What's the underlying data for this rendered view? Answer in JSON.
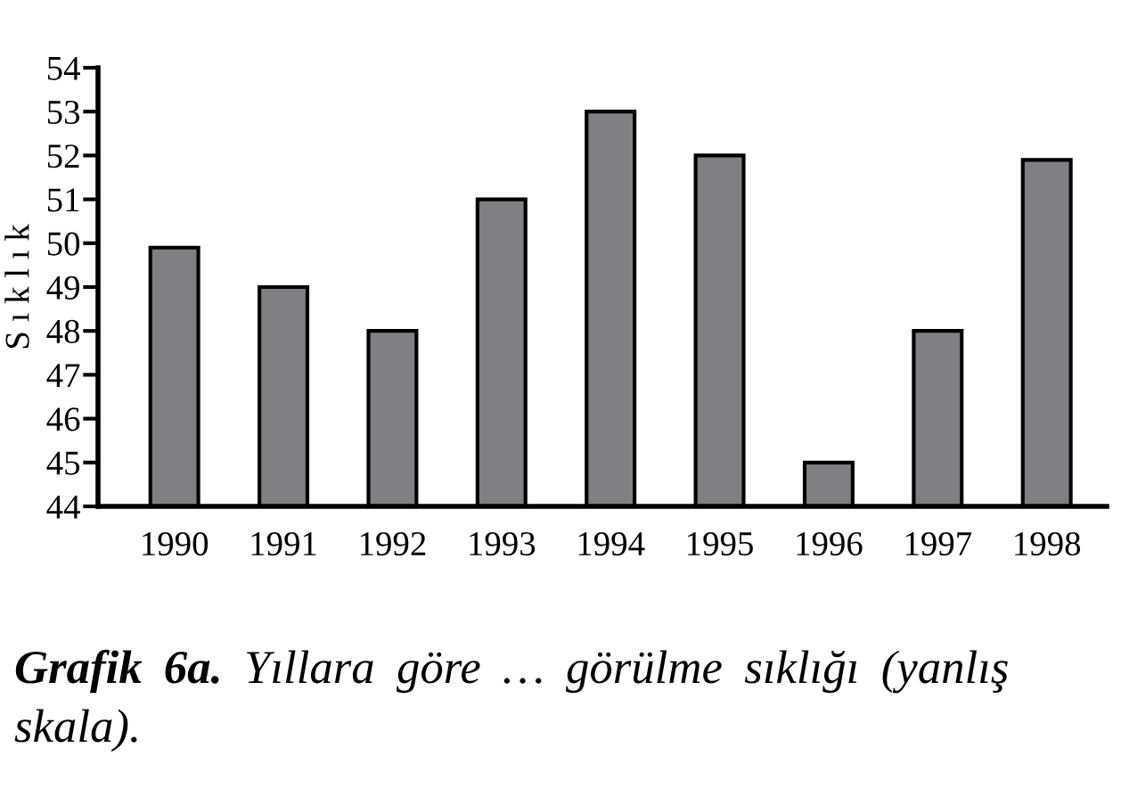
{
  "chart_data": {
    "type": "bar",
    "ylabel": "S ı k l ı k",
    "categories": [
      "1990",
      "1991",
      "1992",
      "1993",
      "1994",
      "1995",
      "1996",
      "1997",
      "1998"
    ],
    "values": [
      49.9,
      49,
      48,
      51,
      53,
      52,
      45,
      48,
      51.9
    ],
    "color": "#7f8083",
    "ylim": [
      44,
      54
    ],
    "yticks": [
      44,
      45,
      46,
      47,
      48,
      49,
      50,
      51,
      52,
      53,
      54
    ],
    "grid": false,
    "annotations": [
      "Grafik 6a.",
      "Yıllara göre … görülme sıklığı (yanlış skala)."
    ]
  }
}
